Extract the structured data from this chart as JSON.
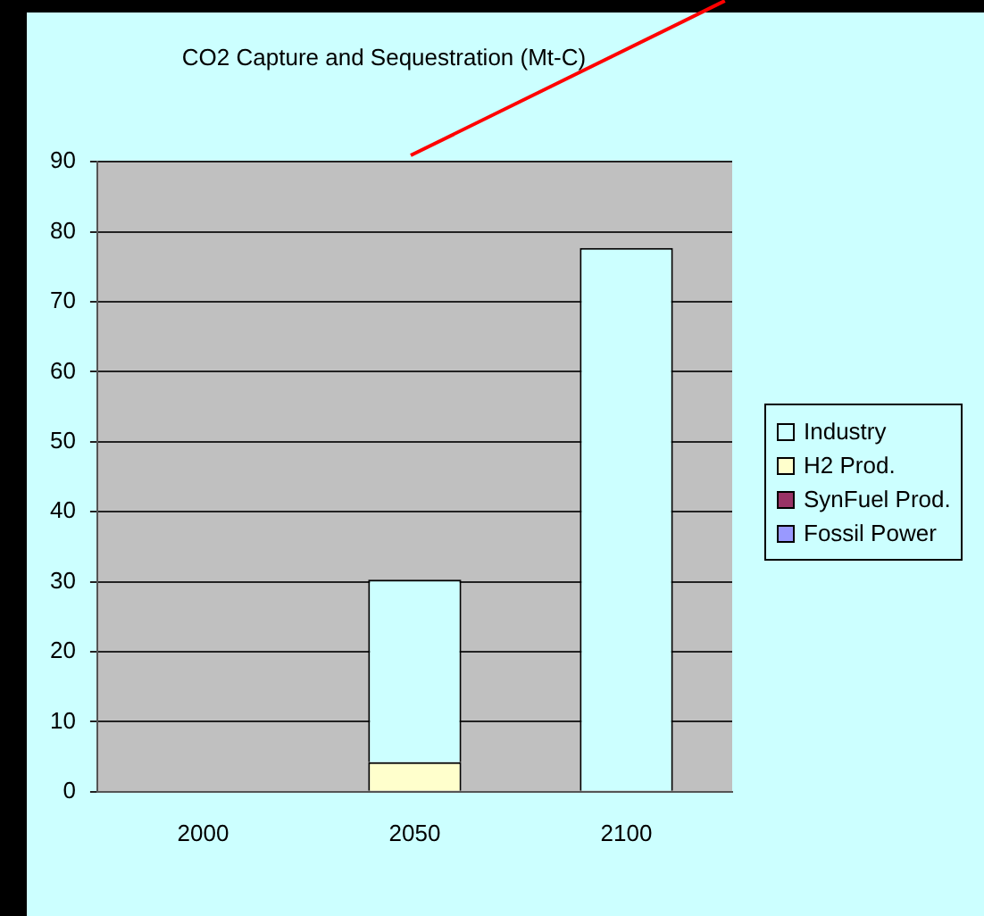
{
  "chart_data": {
    "type": "bar",
    "title": "CO2 Capture and Sequestration (Mt-C)",
    "categories": [
      "2000",
      "2050",
      "2100"
    ],
    "stacked": true,
    "series": [
      {
        "name": "Fossil Power",
        "color": "#9999ff",
        "values": [
          0,
          0,
          0
        ]
      },
      {
        "name": "SynFuel Prod.",
        "color": "#993366",
        "values": [
          0,
          0,
          0
        ]
      },
      {
        "name": "H2 Prod.",
        "color": "#ffffcc",
        "values": [
          0,
          4.2,
          0
        ]
      },
      {
        "name": "Industry",
        "color": "#ccffff",
        "values": [
          0,
          26.1,
          77.7
        ]
      }
    ],
    "ylim": [
      0,
      90
    ],
    "yticks": [
      0,
      10,
      20,
      30,
      40,
      50,
      60,
      70,
      80,
      90
    ],
    "grid": "y",
    "legend": "right"
  }
}
